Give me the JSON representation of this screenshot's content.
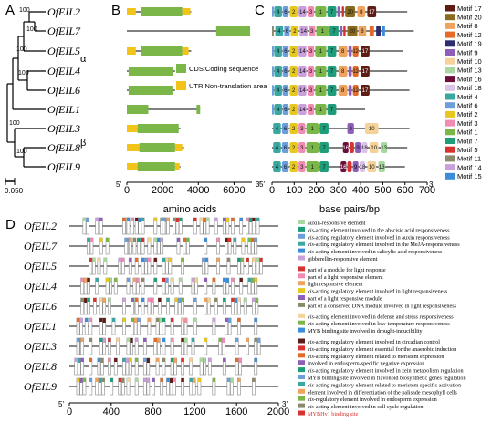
{
  "panel_labels": {
    "a": "A",
    "b": "B",
    "c": "C",
    "d": "D"
  },
  "genes": [
    "OfEIL2",
    "OfEIL7",
    "OfEIL5",
    "OfEIL4",
    "OfEIL6",
    "OfEIL1",
    "OfEIL3",
    "OfEIL8",
    "OfEIL9"
  ],
  "tree": {
    "bootstrap": [
      "100",
      "100",
      "100",
      "100",
      "100",
      "100"
    ],
    "clades": [
      "α",
      "β"
    ],
    "scale_label": "0.050"
  },
  "panel_b": {
    "legend": [
      {
        "label": "CDS:Coding sequence",
        "color": "#7ab648"
      },
      {
        "label": "UTR:Non-translation area",
        "color": "#f2c318"
      }
    ],
    "axis_ticks": [
      "0",
      "2000",
      "4000",
      "6000"
    ],
    "axis_end_left": "5'",
    "axis_end_right": "3'",
    "xlabel": "amino acids",
    "genes": [
      {
        "length": 3600,
        "exons": [
          {
            "type": "utr",
            "start": 0,
            "end": 500
          },
          {
            "type": "cds",
            "start": 800,
            "end": 3100
          },
          {
            "type": "utr",
            "start": 3100,
            "end": 3550
          }
        ]
      },
      {
        "length": 6900,
        "exons": [
          {
            "type": "cds",
            "start": 5000,
            "end": 6900
          }
        ]
      },
      {
        "length": 3600,
        "exons": [
          {
            "type": "utr",
            "start": 0,
            "end": 500
          },
          {
            "type": "cds",
            "start": 800,
            "end": 3100
          },
          {
            "type": "utr",
            "start": 3100,
            "end": 3450
          }
        ]
      },
      {
        "length": 2700,
        "exons": [
          {
            "type": "cds",
            "start": 100,
            "end": 2600
          }
        ]
      },
      {
        "length": 2700,
        "exons": [
          {
            "type": "cds",
            "start": 100,
            "end": 2550
          }
        ]
      },
      {
        "length": 4100,
        "exons": [
          {
            "type": "cds",
            "start": 0,
            "end": 1200
          },
          {
            "type": "cds",
            "start": 3900,
            "end": 4100
          }
        ]
      },
      {
        "length": 3000,
        "exons": [
          {
            "type": "utr",
            "start": 0,
            "end": 600
          },
          {
            "type": "cds",
            "start": 600,
            "end": 2900
          }
        ]
      },
      {
        "length": 3200,
        "exons": [
          {
            "type": "utr",
            "start": 0,
            "end": 700
          },
          {
            "type": "cds",
            "start": 700,
            "end": 2700
          },
          {
            "type": "utr",
            "start": 2700,
            "end": 3100
          }
        ]
      },
      {
        "length": 3000,
        "exons": [
          {
            "type": "utr",
            "start": 0,
            "end": 600
          },
          {
            "type": "cds",
            "start": 600,
            "end": 2700
          },
          {
            "type": "utr",
            "start": 2700,
            "end": 2950
          }
        ]
      }
    ]
  },
  "panel_c": {
    "axis_ticks": [
      "0",
      "100",
      "200",
      "300",
      "400",
      "500",
      "600",
      "700"
    ],
    "axis_end_left": "5'",
    "axis_end_right": "3'",
    "xlabel": "base pairs/bp",
    "motif_colors": {
      "1": "#7ab648",
      "2": "#e7c81f",
      "3": "#f08cb4",
      "4": "#3aa8a0",
      "5": "#d6322f",
      "6": "#6d9edc",
      "7": "#1f9d7a",
      "8": "#f0a35e",
      "9": "#8e5fb8",
      "10": "#f5d29a",
      "11": "#8b8b6b",
      "12": "#e46a2a",
      "13": "#a8d8a0",
      "14": "#c9a0dc",
      "15": "#3c8dd9",
      "16": "#6b0f3a",
      "17": "#5e1d14",
      "18": "#d9c3e6",
      "19": "#2d2d6e",
      "20": "#8a6a1e"
    },
    "legend": [
      {
        "id": "17",
        "label": "Motif 17"
      },
      {
        "id": "20",
        "label": "Motif 20"
      },
      {
        "id": "8",
        "label": "Motif 8"
      },
      {
        "id": "12",
        "label": "Motif 12"
      },
      {
        "id": "19",
        "label": "Motif 19"
      },
      {
        "id": "9",
        "label": "Motif 9"
      },
      {
        "id": "10",
        "label": "Motif 10"
      },
      {
        "id": "13",
        "label": "Motif 13"
      },
      {
        "id": "16",
        "label": "Motif 16"
      },
      {
        "id": "18",
        "label": "Motif 18"
      },
      {
        "id": "4",
        "label": "Motif 4"
      },
      {
        "id": "6",
        "label": "Motif 6"
      },
      {
        "id": "2",
        "label": "Motif 2"
      },
      {
        "id": "3",
        "label": "Motif 3"
      },
      {
        "id": "1",
        "label": "Motif 1"
      },
      {
        "id": "7",
        "label": "Motif 7"
      },
      {
        "id": "5",
        "label": "Motif 5"
      },
      {
        "id": "11",
        "label": "Motif 11"
      },
      {
        "id": "14",
        "label": "Motif 14"
      },
      {
        "id": "15",
        "label": "Motif 15"
      }
    ],
    "genes": [
      {
        "length": 610,
        "motifs": [
          {
            "id": "6",
            "s": 0,
            "e": 8
          },
          {
            "id": "4",
            "s": 10,
            "e": 45
          },
          {
            "id": "6",
            "s": 48,
            "e": 75
          },
          {
            "id": "2",
            "s": 80,
            "e": 115
          },
          {
            "id": "14",
            "s": 120,
            "e": 155
          },
          {
            "id": "3",
            "s": 160,
            "e": 190
          },
          {
            "id": "1",
            "s": 195,
            "e": 245
          },
          {
            "id": "7",
            "s": 250,
            "e": 290
          },
          {
            "id": "9",
            "s": 295,
            "e": 305
          },
          {
            "id": "5",
            "s": 315,
            "e": 325
          },
          {
            "id": "20",
            "s": 330,
            "e": 375
          },
          {
            "id": "8",
            "s": 385,
            "e": 420
          },
          {
            "id": "17",
            "s": 430,
            "e": 470
          }
        ]
      },
      {
        "length": 640,
        "motifs": [
          {
            "id": "11",
            "s": 0,
            "e": 8
          },
          {
            "id": "4",
            "s": 15,
            "e": 50
          },
          {
            "id": "6",
            "s": 55,
            "e": 80
          },
          {
            "id": "2",
            "s": 85,
            "e": 120
          },
          {
            "id": "14",
            "s": 125,
            "e": 160
          },
          {
            "id": "3",
            "s": 165,
            "e": 195
          },
          {
            "id": "1",
            "s": 200,
            "e": 255
          },
          {
            "id": "7",
            "s": 260,
            "e": 300
          },
          {
            "id": "9",
            "s": 305,
            "e": 318
          },
          {
            "id": "5",
            "s": 322,
            "e": 332
          },
          {
            "id": "20",
            "s": 340,
            "e": 385
          },
          {
            "id": "8",
            "s": 390,
            "e": 425
          },
          {
            "id": "12",
            "s": 440,
            "e": 460
          },
          {
            "id": "19",
            "s": 470,
            "e": 490
          },
          {
            "id": "15",
            "s": 495,
            "e": 510
          }
        ]
      },
      {
        "length": 590,
        "motifs": [
          {
            "id": "6",
            "s": 0,
            "e": 8
          },
          {
            "id": "4",
            "s": 10,
            "e": 45
          },
          {
            "id": "6",
            "s": 48,
            "e": 75
          },
          {
            "id": "2",
            "s": 80,
            "e": 115
          },
          {
            "id": "14",
            "s": 120,
            "e": 155
          },
          {
            "id": "3",
            "s": 160,
            "e": 190
          },
          {
            "id": "1",
            "s": 195,
            "e": 245
          },
          {
            "id": "7",
            "s": 250,
            "e": 290
          },
          {
            "id": "8",
            "s": 300,
            "e": 340
          },
          {
            "id": "9",
            "s": 345,
            "e": 360
          },
          {
            "id": "12",
            "s": 365,
            "e": 390
          },
          {
            "id": "17",
            "s": 400,
            "e": 440
          }
        ]
      },
      {
        "length": 610,
        "motifs": [
          {
            "id": "6",
            "s": 0,
            "e": 8
          },
          {
            "id": "4",
            "s": 10,
            "e": 45
          },
          {
            "id": "6",
            "s": 48,
            "e": 75
          },
          {
            "id": "2",
            "s": 80,
            "e": 115
          },
          {
            "id": "14",
            "s": 120,
            "e": 155
          },
          {
            "id": "3",
            "s": 160,
            "e": 190
          },
          {
            "id": "1",
            "s": 195,
            "e": 245
          },
          {
            "id": "7",
            "s": 250,
            "e": 290
          },
          {
            "id": "8",
            "s": 300,
            "e": 340
          },
          {
            "id": "9",
            "s": 345,
            "e": 360
          },
          {
            "id": "12",
            "s": 365,
            "e": 390
          },
          {
            "id": "17",
            "s": 400,
            "e": 440
          }
        ]
      },
      {
        "length": 620,
        "motifs": [
          {
            "id": "6",
            "s": 0,
            "e": 8
          },
          {
            "id": "4",
            "s": 10,
            "e": 45
          },
          {
            "id": "6",
            "s": 48,
            "e": 75
          },
          {
            "id": "2",
            "s": 80,
            "e": 115
          },
          {
            "id": "14",
            "s": 120,
            "e": 155
          },
          {
            "id": "3",
            "s": 160,
            "e": 190
          },
          {
            "id": "1",
            "s": 195,
            "e": 245
          },
          {
            "id": "7",
            "s": 250,
            "e": 290
          },
          {
            "id": "8",
            "s": 300,
            "e": 340
          },
          {
            "id": "9",
            "s": 345,
            "e": 360
          },
          {
            "id": "12",
            "s": 365,
            "e": 390
          },
          {
            "id": "17",
            "s": 400,
            "e": 440
          }
        ]
      },
      {
        "length": 420,
        "motifs": [
          {
            "id": "6",
            "s": 0,
            "e": 8
          },
          {
            "id": "4",
            "s": 10,
            "e": 45
          },
          {
            "id": "6",
            "s": 48,
            "e": 75
          },
          {
            "id": "2",
            "s": 80,
            "e": 115
          },
          {
            "id": "14",
            "s": 120,
            "e": 155
          },
          {
            "id": "3",
            "s": 160,
            "e": 190
          },
          {
            "id": "1",
            "s": 195,
            "e": 245
          },
          {
            "id": "7",
            "s": 250,
            "e": 290
          }
        ]
      },
      {
        "length": 620,
        "motifs": [
          {
            "id": "4",
            "s": 5,
            "e": 40
          },
          {
            "id": "6",
            "s": 45,
            "e": 75
          },
          {
            "id": "2",
            "s": 80,
            "e": 115
          },
          {
            "id": "3",
            "s": 120,
            "e": 150
          },
          {
            "id": "1",
            "s": 155,
            "e": 210
          },
          {
            "id": "7",
            "s": 215,
            "e": 255
          },
          {
            "id": "9",
            "s": 340,
            "e": 370
          },
          {
            "id": "10",
            "s": 420,
            "e": 480
          }
        ]
      },
      {
        "length": 610,
        "motifs": [
          {
            "id": "4",
            "s": 5,
            "e": 40
          },
          {
            "id": "6",
            "s": 45,
            "e": 75
          },
          {
            "id": "2",
            "s": 80,
            "e": 115
          },
          {
            "id": "3",
            "s": 120,
            "e": 150
          },
          {
            "id": "1",
            "s": 155,
            "e": 210
          },
          {
            "id": "7",
            "s": 215,
            "e": 255
          },
          {
            "id": "16",
            "s": 320,
            "e": 345
          },
          {
            "id": "5",
            "s": 350,
            "e": 370
          },
          {
            "id": "9",
            "s": 375,
            "e": 400
          },
          {
            "id": "18",
            "s": 405,
            "e": 430
          },
          {
            "id": "10",
            "s": 440,
            "e": 480
          },
          {
            "id": "13",
            "s": 490,
            "e": 520
          }
        ]
      },
      {
        "length": 600,
        "motifs": [
          {
            "id": "4",
            "s": 5,
            "e": 40
          },
          {
            "id": "6",
            "s": 45,
            "e": 75
          },
          {
            "id": "2",
            "s": 80,
            "e": 115
          },
          {
            "id": "3",
            "s": 120,
            "e": 150
          },
          {
            "id": "1",
            "s": 155,
            "e": 210
          },
          {
            "id": "7",
            "s": 215,
            "e": 255
          },
          {
            "id": "16",
            "s": 310,
            "e": 335
          },
          {
            "id": "5",
            "s": 340,
            "e": 360
          },
          {
            "id": "9",
            "s": 365,
            "e": 390
          },
          {
            "id": "18",
            "s": 395,
            "e": 420
          },
          {
            "id": "10",
            "s": 430,
            "e": 470
          },
          {
            "id": "13",
            "s": 480,
            "e": 510
          }
        ]
      }
    ]
  },
  "panel_d": {
    "axis_ticks": [
      "0",
      "400",
      "800",
      "1200",
      "1600",
      "2000"
    ],
    "axis_end_left": "5'",
    "axis_end_right": "3'",
    "element_colors": [
      "#a8d8a0",
      "#1f9d7a",
      "#6d9edc",
      "#3aa8a0",
      "#3c8dd9",
      "#c9a0dc",
      "#d6322f",
      "#f0a35e",
      "#e7c81f",
      "#f08cb4",
      "#8e5fb8",
      "#f5d29a",
      "#8b8b6b",
      "#7ab648",
      "#5e1d14",
      "#e46a2a"
    ],
    "legend_groups": [
      [
        {
          "c": "#a8d8a0",
          "t": "auxin-responsive element",
          "cis": false
        },
        {
          "c": "#1f9d7a",
          "t": "-acting element involved in the abscisic acid responsiveness",
          "cis": true
        },
        {
          "c": "#6d9edc",
          "t": "-acting regulatory element involved in auxin responsiveness",
          "cis": true
        },
        {
          "c": "#3aa8a0",
          "t": "-acting regulatory element involved in the MeJA-responsiveness",
          "cis": true
        },
        {
          "c": "#3c8dd9",
          "t": "-acting element involved in salicylic acid responsiveness",
          "cis": true
        },
        {
          "c": "#c9a0dc",
          "t": "gibberellin-responsive element",
          "cis": false
        }
      ],
      [
        {
          "c": "#d6322f",
          "t": "part of a module for light response",
          "cis": false
        },
        {
          "c": "#f08cb4",
          "t": "part of a light responsive element",
          "cis": false
        },
        {
          "c": "#f0a35e",
          "t": "light responsive element",
          "cis": false
        },
        {
          "c": "#e7c81f",
          "t": "-acting regulatory element involved in light responsiveness",
          "cis": true
        },
        {
          "c": "#8e5fb8",
          "t": "part of a light responsive module",
          "cis": false
        },
        {
          "c": "#8b8b6b",
          "t": "part of a conserved DNA module involved in light responsiveness",
          "cis": false
        }
      ],
      [
        {
          "c": "#f5d29a",
          "t": "-acting element involved in defense and stress responsiveness",
          "cis": true
        },
        {
          "c": "#7ab648",
          "t": "-acting element involved in low-temperature responsiveness",
          "cis": true
        },
        {
          "c": "#3c8dd9",
          "t": "MYB binding site involved in drought-inducibility",
          "cis": false
        }
      ],
      [
        {
          "c": "#5e1d14",
          "t": "-acting regulatory element involved in circadian control",
          "cis": true
        },
        {
          "c": "#d6322f",
          "t": "-acting regulatory element essential for the anaerobic induction",
          "cis": true
        },
        {
          "c": "#e46a2a",
          "t": "-acting regulatory element related to meristem expression",
          "cis": true
        },
        {
          "c": "#8e5fb8",
          "t": "involved in endosperm-specific negative expression",
          "cis": false
        },
        {
          "c": "#1f9d7a",
          "t": "-acting regulatory element involved in zein metabolism regulation",
          "cis": true
        },
        {
          "c": "#6d9edc",
          "t": "MYB binding site involved in flavonoid biosynthetic genes regulation",
          "cis": false
        },
        {
          "c": "#3aa8a0",
          "t": "-acting regulatory element related to meristem specific activation",
          "cis": true
        },
        {
          "c": "#f0a35e",
          "t": "element involved in differentiation of the palisade mesophyll cells",
          "cis": false
        },
        {
          "c": "#7ab648",
          "t": "-regulatory element involved in endosperm expression",
          "cis": true
        },
        {
          "c": "#8b8b6b",
          "t": "-acting element involved in cell cycle regulation",
          "cis": true
        },
        {
          "c": "#d6322f",
          "t": "MYBHv1 binding site",
          "cis": false,
          "red": true
        }
      ]
    ],
    "cis_prefix": "cis"
  }
}
